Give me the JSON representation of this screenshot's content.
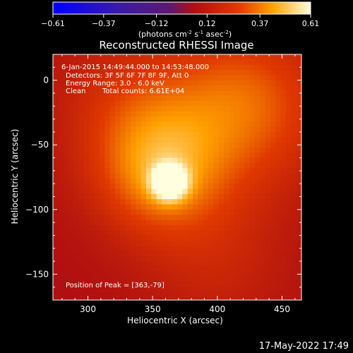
{
  "chart_data": {
    "type": "heatmap",
    "title": "Reconstructed RHESSI Image",
    "xlabel": "Heliocentric X (arcsec)",
    "ylabel": "Heliocentric Y (arcsec)",
    "xlim": [
      273,
      465
    ],
    "ylim": [
      -170,
      20
    ],
    "x_ticks": [
      300,
      350,
      400,
      450
    ],
    "y_ticks": [
      0,
      -50,
      -100,
      -150
    ],
    "colorbar": {
      "range": [
        -0.61,
        0.61
      ],
      "ticks": [
        "-0.61",
        "-0.37",
        "-0.12",
        "0.12",
        "0.37",
        "0.61"
      ],
      "unit_prefix": "(photons cm",
      "unit_sup1": "-2",
      "unit_mid1": " s",
      "unit_sup2": "-1",
      "unit_mid2": " asec",
      "unit_sup3": "-2",
      "unit_suffix": ")"
    },
    "annotations": {
      "time_range": "6-Jan-2015 14:49:44.000 to 14:53:48.000",
      "detectors": "Detectors: 3F 5F 6F 7F 8F 9F, Att 0",
      "energy_range": "Energy Range: 3.0 - 6.0 keV",
      "clean_label": "Clean",
      "total_counts": "Total counts: 6.61E+04",
      "peak_position": "Position of Peak = [363,-79]"
    },
    "peak": {
      "x": 363,
      "y": -79,
      "value": 0.61
    },
    "sources": [
      {
        "x": 363,
        "y": -79,
        "amp": 0.52,
        "sigma": 9
      },
      {
        "x": 355,
        "y": -72,
        "amp": 0.3,
        "sigma": 35
      },
      {
        "x": 420,
        "y": -20,
        "amp": 0.28,
        "sigma": 45
      },
      {
        "x": 330,
        "y": -20,
        "amp": 0.14,
        "sigma": 40
      },
      {
        "x": 400,
        "y": -140,
        "amp": 0.1,
        "sigma": 40
      }
    ],
    "background_level": 0.06
  },
  "footer": {
    "date": "17-May-2022 17:49"
  }
}
